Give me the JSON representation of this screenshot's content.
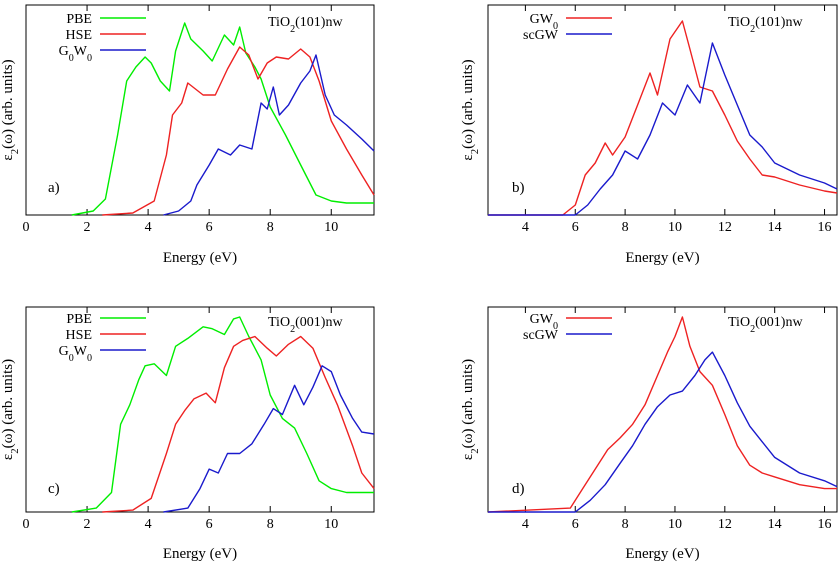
{
  "chart_data": [
    {
      "type": "line",
      "panel_label": "a)",
      "annotation": "TiO2(101)nw",
      "xlabel": "Energy (eV)",
      "ylabel": "ε2(ω) (arb. units)",
      "xlim": [
        0,
        11.4
      ],
      "ylim": [
        0,
        1
      ],
      "xticks": [
        0,
        2,
        4,
        6,
        8,
        10
      ],
      "legend_position": "top-left",
      "series": [
        {
          "name": "PBE",
          "color": "#00ee00",
          "x": [
            1.5,
            2.2,
            2.6,
            3.0,
            3.3,
            3.6,
            3.9,
            4.1,
            4.4,
            4.7,
            4.9,
            5.2,
            5.4,
            5.8,
            6.1,
            6.5,
            6.8,
            7.0,
            7.2,
            7.5,
            7.7,
            8.0,
            8.5,
            9.0,
            9.5,
            10.0,
            10.5,
            11.0,
            11.4
          ],
          "y": [
            0.0,
            0.02,
            0.08,
            0.4,
            0.67,
            0.74,
            0.79,
            0.76,
            0.67,
            0.62,
            0.82,
            0.96,
            0.88,
            0.82,
            0.77,
            0.9,
            0.85,
            0.94,
            0.81,
            0.74,
            0.68,
            0.54,
            0.4,
            0.25,
            0.1,
            0.07,
            0.06,
            0.06,
            0.06
          ]
        },
        {
          "name": "HSE",
          "color": "#ee2222",
          "x": [
            2.5,
            3.5,
            4.2,
            4.6,
            4.8,
            5.1,
            5.3,
            5.8,
            6.2,
            6.6,
            7.0,
            7.3,
            7.6,
            7.9,
            8.2,
            8.6,
            9.0,
            9.3,
            9.6,
            10.0,
            10.5,
            11.0,
            11.4
          ],
          "y": [
            0.0,
            0.01,
            0.07,
            0.3,
            0.5,
            0.56,
            0.66,
            0.6,
            0.6,
            0.73,
            0.84,
            0.8,
            0.68,
            0.76,
            0.79,
            0.78,
            0.83,
            0.79,
            0.67,
            0.47,
            0.33,
            0.2,
            0.1
          ]
        },
        {
          "name": "G0W0",
          "color": "#1a1acc",
          "x": [
            4.5,
            5.0,
            5.4,
            5.6,
            6.0,
            6.3,
            6.7,
            7.0,
            7.4,
            7.7,
            7.9,
            8.1,
            8.3,
            8.6,
            9.0,
            9.3,
            9.5,
            9.8,
            10.1,
            10.5,
            11.0,
            11.4
          ],
          "y": [
            0.0,
            0.02,
            0.07,
            0.15,
            0.25,
            0.33,
            0.3,
            0.35,
            0.33,
            0.56,
            0.53,
            0.64,
            0.5,
            0.55,
            0.66,
            0.72,
            0.8,
            0.6,
            0.5,
            0.45,
            0.38,
            0.32
          ]
        }
      ]
    },
    {
      "type": "line",
      "panel_label": "b)",
      "annotation": "TiO2(101)nw",
      "xlabel": "Energy (eV)",
      "ylabel": "ε2(ω) (arb. units)",
      "xlim": [
        2.5,
        16.5
      ],
      "ylim": [
        0,
        1
      ],
      "xticks": [
        4,
        6,
        8,
        10,
        12,
        14,
        16
      ],
      "legend_position": "top-left",
      "series": [
        {
          "name": "GW0",
          "color": "#ee2222",
          "x": [
            2.5,
            5.5,
            6.0,
            6.4,
            6.8,
            7.2,
            7.5,
            8.0,
            8.5,
            9.0,
            9.3,
            9.8,
            10.3,
            10.6,
            11.0,
            11.5,
            12.0,
            12.5,
            13.0,
            13.5,
            14.0,
            15.0,
            16.0,
            16.5
          ],
          "y": [
            0.0,
            0.0,
            0.05,
            0.2,
            0.26,
            0.36,
            0.3,
            0.39,
            0.55,
            0.71,
            0.6,
            0.88,
            0.97,
            0.83,
            0.64,
            0.62,
            0.5,
            0.37,
            0.28,
            0.2,
            0.19,
            0.15,
            0.12,
            0.11
          ]
        },
        {
          "name": "scGW",
          "color": "#1a1acc",
          "x": [
            2.5,
            6.0,
            6.5,
            7.0,
            7.5,
            8.0,
            8.5,
            9.0,
            9.5,
            10.0,
            10.5,
            11.0,
            11.5,
            12.0,
            12.5,
            13.0,
            13.5,
            14.0,
            15.0,
            16.0,
            16.5
          ],
          "y": [
            0.0,
            0.0,
            0.05,
            0.13,
            0.2,
            0.32,
            0.28,
            0.4,
            0.56,
            0.5,
            0.65,
            0.56,
            0.86,
            0.7,
            0.55,
            0.4,
            0.34,
            0.26,
            0.2,
            0.16,
            0.13
          ]
        }
      ]
    },
    {
      "type": "line",
      "panel_label": "c)",
      "annotation": "TiO2(001)nw",
      "xlabel": "Energy (eV)",
      "ylabel": "ε2(ω) (arb. units)",
      "xlim": [
        0,
        11.4
      ],
      "ylim": [
        0,
        1
      ],
      "xticks": [
        0,
        2,
        4,
        6,
        8,
        10
      ],
      "legend_position": "top-left",
      "series": [
        {
          "name": "PBE",
          "color": "#00ee00",
          "x": [
            1.5,
            2.3,
            2.8,
            3.1,
            3.4,
            3.7,
            3.9,
            4.2,
            4.6,
            4.9,
            5.3,
            5.8,
            6.1,
            6.5,
            6.8,
            7.0,
            7.3,
            7.7,
            8.0,
            8.4,
            8.8,
            9.2,
            9.6,
            10.0,
            10.5,
            11.0,
            11.4
          ],
          "y": [
            0.0,
            0.02,
            0.1,
            0.45,
            0.55,
            0.68,
            0.75,
            0.76,
            0.7,
            0.85,
            0.89,
            0.95,
            0.94,
            0.91,
            0.99,
            1.0,
            0.9,
            0.78,
            0.6,
            0.48,
            0.43,
            0.3,
            0.16,
            0.12,
            0.1,
            0.1,
            0.1
          ]
        },
        {
          "name": "HSE",
          "color": "#ee2222",
          "x": [
            2.5,
            3.5,
            4.1,
            4.6,
            4.9,
            5.2,
            5.5,
            5.9,
            6.2,
            6.5,
            6.8,
            7.1,
            7.5,
            7.9,
            8.2,
            8.6,
            9.0,
            9.4,
            9.8,
            10.2,
            10.7,
            11.0,
            11.4
          ],
          "y": [
            0.0,
            0.01,
            0.07,
            0.3,
            0.45,
            0.52,
            0.58,
            0.61,
            0.56,
            0.74,
            0.85,
            0.88,
            0.9,
            0.84,
            0.8,
            0.86,
            0.9,
            0.84,
            0.69,
            0.55,
            0.34,
            0.2,
            0.12
          ]
        },
        {
          "name": "G0W0",
          "color": "#1a1acc",
          "x": [
            4.5,
            5.3,
            5.7,
            6.0,
            6.3,
            6.6,
            7.0,
            7.4,
            7.8,
            8.1,
            8.4,
            8.8,
            9.1,
            9.4,
            9.7,
            10.0,
            10.3,
            10.7,
            11.0,
            11.4
          ],
          "y": [
            0.0,
            0.02,
            0.12,
            0.22,
            0.2,
            0.3,
            0.3,
            0.35,
            0.45,
            0.53,
            0.5,
            0.65,
            0.55,
            0.64,
            0.75,
            0.72,
            0.6,
            0.48,
            0.41,
            0.4
          ]
        }
      ]
    },
    {
      "type": "line",
      "panel_label": "d)",
      "annotation": "TiO2(001)nw",
      "xlabel": "Energy (eV)",
      "ylabel": "ε2(ω) (arb. units)",
      "xlim": [
        2.5,
        16.5
      ],
      "ylim": [
        0,
        1
      ],
      "xticks": [
        4,
        6,
        8,
        10,
        12,
        14,
        16
      ],
      "legend_position": "top-left",
      "series": [
        {
          "name": "GW0",
          "color": "#ee2222",
          "x": [
            2.5,
            5.8,
            6.3,
            6.8,
            7.3,
            7.8,
            8.3,
            8.8,
            9.3,
            9.7,
            10.0,
            10.3,
            10.6,
            11.0,
            11.5,
            12.0,
            12.5,
            13.0,
            13.5,
            14.0,
            15.0,
            16.0,
            16.5
          ],
          "y": [
            0.0,
            0.02,
            0.12,
            0.22,
            0.32,
            0.38,
            0.45,
            0.55,
            0.7,
            0.82,
            0.9,
            1.0,
            0.85,
            0.72,
            0.65,
            0.5,
            0.34,
            0.24,
            0.2,
            0.18,
            0.14,
            0.12,
            0.12
          ]
        },
        {
          "name": "scGW",
          "color": "#1a1acc",
          "x": [
            2.5,
            6.0,
            6.6,
            7.2,
            7.8,
            8.3,
            8.8,
            9.3,
            9.8,
            10.3,
            10.8,
            11.2,
            11.5,
            12.0,
            12.5,
            13.0,
            13.5,
            14.0,
            15.0,
            16.0,
            16.5
          ],
          "y": [
            0.0,
            0.0,
            0.06,
            0.14,
            0.25,
            0.34,
            0.45,
            0.54,
            0.6,
            0.62,
            0.7,
            0.78,
            0.82,
            0.7,
            0.56,
            0.44,
            0.36,
            0.28,
            0.2,
            0.16,
            0.13
          ]
        }
      ]
    }
  ]
}
